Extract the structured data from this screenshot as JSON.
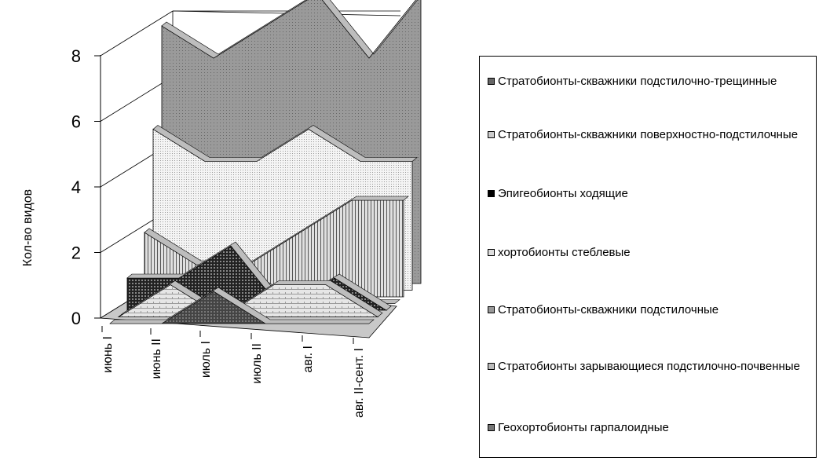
{
  "chart_data": {
    "type": "area",
    "subtype": "3d-area",
    "categories": [
      "июнь I",
      "июнь II",
      "июль I",
      "июль II",
      "авг. I",
      "авг. II-сент. I"
    ],
    "ylabel": "Кол-во видов",
    "ylim": [
      0,
      8
    ],
    "yticks": [
      "0",
      "2",
      "4",
      "6",
      "8"
    ],
    "grid": true,
    "legend_position": "right",
    "series": [
      {
        "name": "Стратобионты-скважники подстилочно-трещинные",
        "values": [
          8,
          7,
          8,
          9,
          7,
          9
        ],
        "color": "#9a9a9a"
      },
      {
        "name": "Стратобионты-скважники поверхностно-подстилочные",
        "values": [
          5,
          4,
          4,
          5,
          4,
          4
        ],
        "color": "#e8e8e8"
      },
      {
        "name": "Эпигеобионты ходящие",
        "values": [
          2,
          1,
          1,
          2,
          3,
          3
        ],
        "color": "#8a8a8a"
      },
      {
        "name": "хортобионты стеблевые",
        "values": [
          0,
          0,
          1,
          0,
          0,
          0
        ],
        "color": "#f2f2f2"
      },
      {
        "name": "Стратобионты-скважники подстилочные",
        "values": [
          1,
          1,
          2,
          0,
          1,
          0
        ],
        "color": "#d8d8d8"
      },
      {
        "name": "Стратобионты зарывающиеся подстилочно-почвенные",
        "values": [
          0,
          1,
          0,
          1,
          1,
          0
        ],
        "color": "#dadada"
      },
      {
        "name": "Геохортобионты гарпалоидные",
        "values": [
          0,
          0,
          1,
          0,
          0,
          0
        ],
        "color": "#555555"
      }
    ]
  },
  "legend": {
    "items": [
      "Стратобионты-скважники подстилочно-трещинные",
      "Стратобионты-скважники поверхностно-подстилочные",
      "Эпигеобионты ходящие",
      "хортобионты стеблевые",
      "Стратобионты-скважники подстилочные",
      "Стратобионты зарывающиеся подстилочно-почвенные",
      "Геохортобионты гарпалоидные"
    ]
  }
}
